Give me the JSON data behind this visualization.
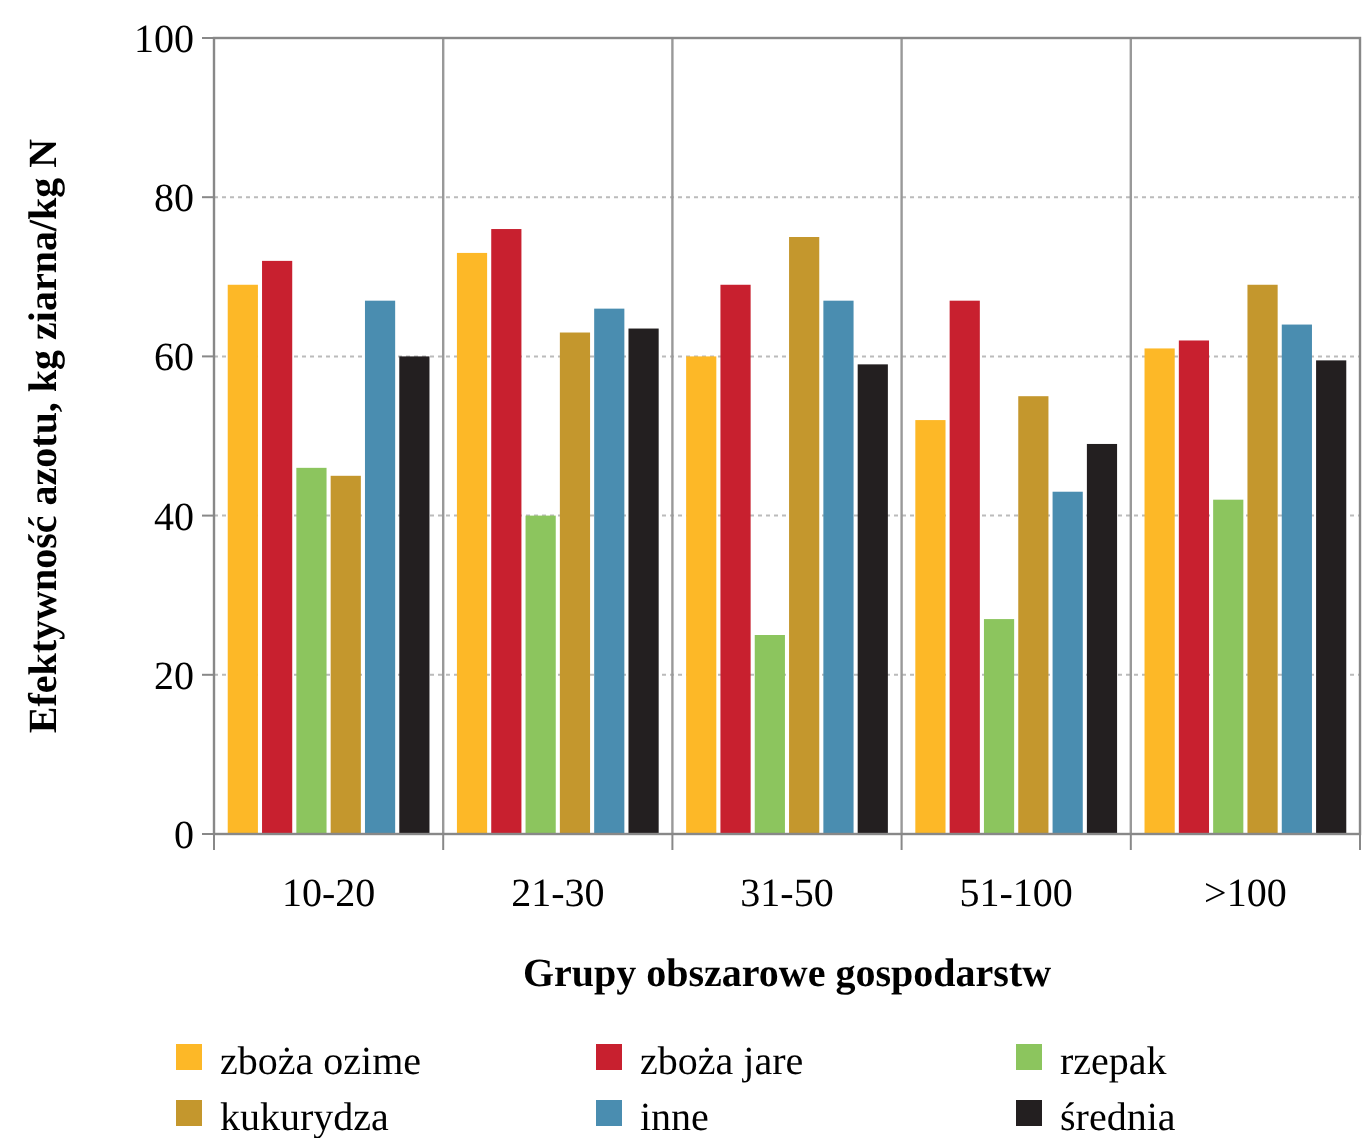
{
  "chart_data": {
    "type": "bar",
    "xlabel": "Grupy obszarowe gospodarstw",
    "ylabel": "Efektywność azotu, kg ziarna/kg N",
    "categories": [
      "10-20",
      "21-30",
      "31-50",
      "51-100",
      ">100"
    ],
    "series": [
      {
        "name": "zboża ozime",
        "color": "#fdb827",
        "values": [
          69,
          73,
          60,
          52,
          61
        ]
      },
      {
        "name": "zboża jare",
        "color": "#c8202f",
        "values": [
          72,
          76,
          69,
          67,
          62
        ]
      },
      {
        "name": "rzepak",
        "color": "#8cc55e",
        "values": [
          46,
          40,
          25,
          27,
          42
        ]
      },
      {
        "name": "kukurydza",
        "color": "#c4972d",
        "values": [
          45,
          63,
          75,
          55,
          69
        ]
      },
      {
        "name": "inne",
        "color": "#4a8db0",
        "values": [
          67,
          66,
          67,
          43,
          64
        ]
      },
      {
        "name": "średnia",
        "color": "#231f20",
        "values": [
          60,
          63.5,
          59,
          49,
          59.5
        ]
      }
    ],
    "ylim": [
      0,
      100
    ],
    "yticks": [
      0,
      20,
      40,
      60,
      80,
      100
    ],
    "grid": true,
    "legend": "bottom"
  }
}
